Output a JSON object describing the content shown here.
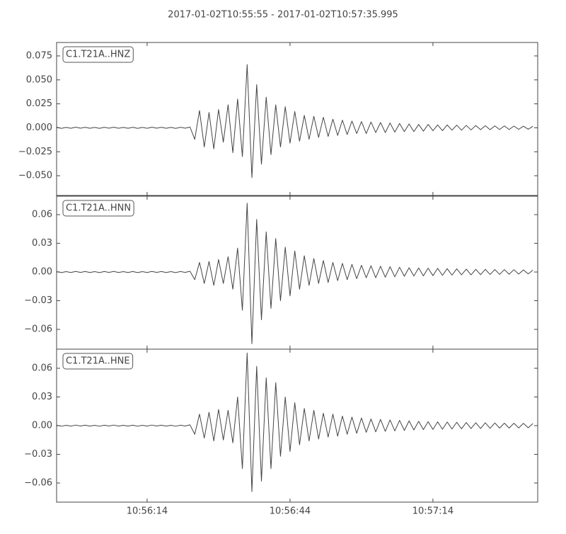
{
  "chart_data": [
    {
      "type": "line",
      "title": "2017-01-02T10:55:55  -  2017-01-02T10:57:35.995",
      "xlim": [
        "10:55:55",
        "10:57:35.995"
      ],
      "ylim": [
        -0.0706,
        0.089
      ],
      "yticks": [
        {
          "value": -0.05,
          "label": "−0.050"
        },
        {
          "value": -0.025,
          "label": "−0.025"
        },
        {
          "value": 0,
          "label": "0.000"
        },
        0.025,
        {
          "value": 0.05,
          "label": "0.050"
        },
        0.075
      ],
      "x": [
        "10:55:55",
        "10:55:56",
        "10:55:57",
        "10:55:58",
        "10:55:59",
        "10:56:00",
        "10:56:01",
        "10:56:02",
        "10:56:03",
        "10:56:04",
        "10:56:05",
        "10:56:06",
        "10:56:07",
        "10:56:08",
        "10:56:09",
        "10:56:10",
        "10:56:11",
        "10:56:12",
        "10:56:13",
        "10:56:14",
        "10:56:15",
        "10:56:16",
        "10:56:17",
        "10:56:18",
        "10:56:19",
        "10:56:20",
        "10:56:21",
        "10:56:22",
        "10:56:23",
        "10:56:24",
        "10:56:25",
        "10:56:26",
        "10:56:27",
        "10:56:28",
        "10:56:29",
        "10:56:30",
        "10:56:31",
        "10:56:32",
        "10:56:33",
        "10:56:34",
        "10:56:35",
        "10:56:36",
        "10:56:37",
        "10:56:38",
        "10:56:39",
        "10:56:40",
        "10:56:41",
        "10:56:42",
        "10:56:43",
        "10:56:44",
        "10:56:45",
        "10:56:46",
        "10:56:47",
        "10:56:48",
        "10:56:49",
        "10:56:50",
        "10:56:51",
        "10:56:52",
        "10:56:53",
        "10:56:54",
        "10:56:55",
        "10:56:56",
        "10:56:57",
        "10:56:58",
        "10:56:59",
        "10:57:00",
        "10:57:01",
        "10:57:02",
        "10:57:03",
        "10:57:04",
        "10:57:05",
        "10:57:06",
        "10:57:07",
        "10:57:08",
        "10:57:09",
        "10:57:10",
        "10:57:11",
        "10:57:12",
        "10:57:13",
        "10:57:14",
        "10:57:15",
        "10:57:16",
        "10:57:17",
        "10:57:18",
        "10:57:19",
        "10:57:20",
        "10:57:21",
        "10:57:22",
        "10:57:23",
        "10:57:24",
        "10:57:25",
        "10:57:26",
        "10:57:27",
        "10:57:28",
        "10:57:29",
        "10:57:30",
        "10:57:31",
        "10:57:32",
        "10:57:33",
        "10:57:34",
        "10:57:35"
      ],
      "series": [
        {
          "name": "C1.T21A..HNZ",
          "color": "#444444",
          "values": [
            0.0005,
            -0.0006,
            0.0004,
            -0.0005,
            0.0006,
            -0.0004,
            0.0005,
            -0.0005,
            0.0004,
            -0.0006,
            0.0005,
            -0.0004,
            0.0006,
            -0.0005,
            0.0004,
            -0.0005,
            0.0005,
            -0.0006,
            0.0004,
            -0.0005,
            0.0006,
            -0.0004,
            0.0005,
            -0.0005,
            0.0004,
            -0.0006,
            0.0005,
            -0.0004,
            0.0008,
            -0.012,
            0.018,
            -0.02,
            0.016,
            -0.022,
            0.019,
            -0.015,
            0.024,
            -0.026,
            0.03,
            -0.03,
            0.066,
            -0.052,
            0.045,
            -0.038,
            0.032,
            -0.028,
            0.024,
            -0.02,
            0.022,
            -0.016,
            0.017,
            -0.014,
            0.013,
            -0.012,
            0.012,
            -0.01,
            0.011,
            -0.009,
            0.009,
            -0.008,
            0.008,
            -0.007,
            0.007,
            -0.006,
            0.0065,
            -0.006,
            0.006,
            -0.005,
            0.0055,
            -0.005,
            0.005,
            -0.0045,
            0.0045,
            -0.004,
            0.004,
            -0.004,
            0.0035,
            -0.0035,
            0.0035,
            -0.003,
            0.003,
            -0.003,
            0.003,
            -0.0025,
            0.0028,
            -0.0025,
            0.0025,
            -0.0022,
            0.0024,
            -0.002,
            0.0022,
            -0.002,
            0.002,
            -0.0018,
            0.002,
            -0.0018,
            0.0018,
            -0.0016,
            0.0017,
            -0.0015,
            0.0016
          ]
        }
      ]
    },
    {
      "type": "line",
      "xlim": [
        "10:55:55",
        "10:57:35.995"
      ],
      "ylim": [
        -0.0807,
        0.0793
      ],
      "yticks": [
        {
          "value": -0.06,
          "label": "−0.06"
        },
        {
          "value": -0.03,
          "label": "−0.03"
        },
        {
          "value": 0,
          "label": "0.00"
        },
        0.03,
        0.06
      ],
      "x": [
        "10:55:55",
        "10:55:56",
        "10:55:57",
        "10:55:58",
        "10:55:59",
        "10:56:00",
        "10:56:01",
        "10:56:02",
        "10:56:03",
        "10:56:04",
        "10:56:05",
        "10:56:06",
        "10:56:07",
        "10:56:08",
        "10:56:09",
        "10:56:10",
        "10:56:11",
        "10:56:12",
        "10:56:13",
        "10:56:14",
        "10:56:15",
        "10:56:16",
        "10:56:17",
        "10:56:18",
        "10:56:19",
        "10:56:20",
        "10:56:21",
        "10:56:22",
        "10:56:23",
        "10:56:24",
        "10:56:25",
        "10:56:26",
        "10:56:27",
        "10:56:28",
        "10:56:29",
        "10:56:30",
        "10:56:31",
        "10:56:32",
        "10:56:33",
        "10:56:34",
        "10:56:35",
        "10:56:36",
        "10:56:37",
        "10:56:38",
        "10:56:39",
        "10:56:40",
        "10:56:41",
        "10:56:42",
        "10:56:43",
        "10:56:44",
        "10:56:45",
        "10:56:46",
        "10:56:47",
        "10:56:48",
        "10:56:49",
        "10:56:50",
        "10:56:51",
        "10:56:52",
        "10:56:53",
        "10:56:54",
        "10:56:55",
        "10:56:56",
        "10:56:57",
        "10:56:58",
        "10:56:59",
        "10:57:00",
        "10:57:01",
        "10:57:02",
        "10:57:03",
        "10:57:04",
        "10:57:05",
        "10:57:06",
        "10:57:07",
        "10:57:08",
        "10:57:09",
        "10:57:10",
        "10:57:11",
        "10:57:12",
        "10:57:13",
        "10:57:14",
        "10:57:15",
        "10:57:16",
        "10:57:17",
        "10:57:18",
        "10:57:19",
        "10:57:20",
        "10:57:21",
        "10:57:22",
        "10:57:23",
        "10:57:24",
        "10:57:25",
        "10:57:26",
        "10:57:27",
        "10:57:28",
        "10:57:29",
        "10:57:30",
        "10:57:31",
        "10:57:32",
        "10:57:33",
        "10:57:34",
        "10:57:35"
      ],
      "series": [
        {
          "name": "C1.T21A..HNN",
          "color": "#444444",
          "values": [
            0.0005,
            -0.0006,
            0.0004,
            -0.0005,
            0.0006,
            -0.0004,
            0.0005,
            -0.0005,
            0.0004,
            -0.0006,
            0.0005,
            -0.0004,
            0.0006,
            -0.0005,
            0.0004,
            -0.0005,
            0.0005,
            -0.0006,
            0.0004,
            -0.0005,
            0.0006,
            -0.0004,
            0.0005,
            -0.0005,
            0.0004,
            -0.0006,
            0.0005,
            -0.0004,
            0.0008,
            -0.008,
            0.01,
            -0.012,
            0.011,
            -0.014,
            0.013,
            -0.012,
            0.016,
            -0.018,
            0.025,
            -0.04,
            0.072,
            -0.075,
            0.055,
            -0.05,
            0.042,
            -0.038,
            0.035,
            -0.03,
            0.026,
            -0.025,
            0.022,
            -0.018,
            0.017,
            -0.014,
            0.014,
            -0.012,
            0.012,
            -0.011,
            0.01,
            -0.009,
            0.009,
            -0.008,
            0.008,
            -0.007,
            0.007,
            -0.006,
            0.0065,
            -0.006,
            0.006,
            -0.0055,
            0.0055,
            -0.005,
            0.005,
            -0.0045,
            0.0045,
            -0.0042,
            0.0042,
            -0.004,
            0.004,
            -0.0038,
            0.0038,
            -0.0035,
            0.0035,
            -0.0033,
            0.0033,
            -0.003,
            0.003,
            -0.003,
            0.0028,
            -0.0028,
            0.0028,
            -0.0026,
            0.0026,
            -0.0025,
            0.0025,
            -0.0024,
            0.0024,
            -0.0022,
            0.0022,
            -0.002,
            0.002
          ]
        }
      ]
    },
    {
      "type": "line",
      "xlim": [
        "10:55:55",
        "10:57:35.995"
      ],
      "xticks": [
        "10:56:14",
        "10:56:44",
        "10:57:14"
      ],
      "ylim": [
        -0.08,
        0.08
      ],
      "yticks": [
        {
          "value": -0.06,
          "label": "−0.06"
        },
        {
          "value": -0.03,
          "label": "−0.03"
        },
        {
          "value": 0,
          "label": "0.00"
        },
        0.03,
        0.06
      ],
      "x": [
        "10:55:55",
        "10:55:56",
        "10:55:57",
        "10:55:58",
        "10:55:59",
        "10:56:00",
        "10:56:01",
        "10:56:02",
        "10:56:03",
        "10:56:04",
        "10:56:05",
        "10:56:06",
        "10:56:07",
        "10:56:08",
        "10:56:09",
        "10:56:10",
        "10:56:11",
        "10:56:12",
        "10:56:13",
        "10:56:14",
        "10:56:15",
        "10:56:16",
        "10:56:17",
        "10:56:18",
        "10:56:19",
        "10:56:20",
        "10:56:21",
        "10:56:22",
        "10:56:23",
        "10:56:24",
        "10:56:25",
        "10:56:26",
        "10:56:27",
        "10:56:28",
        "10:56:29",
        "10:56:30",
        "10:56:31",
        "10:56:32",
        "10:56:33",
        "10:56:34",
        "10:56:35",
        "10:56:36",
        "10:56:37",
        "10:56:38",
        "10:56:39",
        "10:56:40",
        "10:56:41",
        "10:56:42",
        "10:56:43",
        "10:56:44",
        "10:56:45",
        "10:56:46",
        "10:56:47",
        "10:56:48",
        "10:56:49",
        "10:56:50",
        "10:56:51",
        "10:56:52",
        "10:56:53",
        "10:56:54",
        "10:56:55",
        "10:56:56",
        "10:56:57",
        "10:56:58",
        "10:56:59",
        "10:57:00",
        "10:57:01",
        "10:57:02",
        "10:57:03",
        "10:57:04",
        "10:57:05",
        "10:57:06",
        "10:57:07",
        "10:57:08",
        "10:57:09",
        "10:57:10",
        "10:57:11",
        "10:57:12",
        "10:57:13",
        "10:57:14",
        "10:57:15",
        "10:57:16",
        "10:57:17",
        "10:57:18",
        "10:57:19",
        "10:57:20",
        "10:57:21",
        "10:57:22",
        "10:57:23",
        "10:57:24",
        "10:57:25",
        "10:57:26",
        "10:57:27",
        "10:57:28",
        "10:57:29",
        "10:57:30",
        "10:57:31",
        "10:57:32",
        "10:57:33",
        "10:57:34",
        "10:57:35"
      ],
      "series": [
        {
          "name": "C1.T21A..HNE",
          "color": "#444444",
          "values": [
            0.0005,
            -0.0006,
            0.0004,
            -0.0005,
            0.0006,
            -0.0004,
            0.0005,
            -0.0005,
            0.0004,
            -0.0006,
            0.0005,
            -0.0004,
            0.0006,
            -0.0005,
            0.0004,
            -0.0005,
            0.0005,
            -0.0006,
            0.0004,
            -0.0005,
            0.0006,
            -0.0004,
            0.0005,
            -0.0005,
            0.0004,
            -0.0006,
            0.0005,
            -0.0004,
            0.0008,
            -0.009,
            0.012,
            -0.013,
            0.014,
            -0.016,
            0.017,
            -0.015,
            0.016,
            -0.018,
            0.03,
            -0.045,
            0.076,
            -0.069,
            0.062,
            -0.058,
            0.05,
            -0.045,
            0.045,
            -0.032,
            0.03,
            -0.027,
            0.024,
            -0.02,
            0.018,
            -0.016,
            0.016,
            -0.014,
            0.013,
            -0.012,
            0.012,
            -0.011,
            0.01,
            -0.009,
            0.009,
            -0.008,
            0.008,
            -0.007,
            0.007,
            -0.0065,
            0.0065,
            -0.006,
            0.006,
            -0.0055,
            0.0055,
            -0.005,
            0.005,
            -0.0045,
            0.0045,
            -0.0042,
            0.0042,
            -0.004,
            0.004,
            -0.0038,
            0.0038,
            -0.0035,
            0.0035,
            -0.0033,
            0.0033,
            -0.003,
            0.003,
            -0.003,
            0.003,
            -0.0028,
            0.0028,
            -0.0026,
            0.0026,
            -0.0025,
            0.0025,
            -0.0024,
            0.0024,
            -0.0022,
            0.0022
          ]
        }
      ]
    }
  ]
}
